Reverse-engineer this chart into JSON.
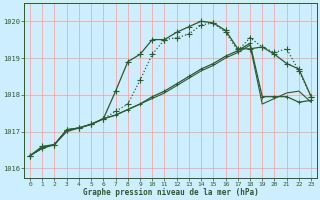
{
  "title": "Graphe pression niveau de la mer (hPa)",
  "background_color": "#cceeff",
  "grid_color": "#ff9999",
  "dark_green": "#2d5a2d",
  "xlim": [
    -0.5,
    23.5
  ],
  "ylim": [
    1015.75,
    1020.5
  ],
  "yticks": [
    1016,
    1017,
    1018,
    1019,
    1020
  ],
  "xticks": [
    0,
    1,
    2,
    3,
    4,
    5,
    6,
    7,
    8,
    9,
    10,
    11,
    12,
    13,
    14,
    15,
    16,
    17,
    18,
    19,
    20,
    21,
    22,
    23
  ],
  "line1_y": [
    1016.35,
    1016.55,
    1016.65,
    1017.05,
    1017.1,
    1017.2,
    1017.35,
    1017.45,
    1017.6,
    1017.75,
    1017.95,
    1018.1,
    1018.3,
    1018.5,
    1018.7,
    1018.85,
    1019.05,
    1019.2,
    1019.4,
    1017.95,
    1017.95,
    1017.95,
    1017.8,
    1017.85
  ],
  "line2_y": [
    1016.35,
    1016.55,
    1016.65,
    1017.05,
    1017.1,
    1017.2,
    1017.35,
    1017.55,
    1017.75,
    1018.4,
    1019.1,
    1019.5,
    1019.55,
    1019.65,
    1019.9,
    1019.95,
    1019.7,
    1019.2,
    1019.55,
    1019.3,
    1019.15,
    1019.25,
    1018.65,
    1017.95
  ],
  "line3_y": [
    1016.35,
    1016.6,
    1016.65,
    1017.05,
    1017.1,
    1017.2,
    1017.35,
    1018.1,
    1018.9,
    1019.1,
    1019.5,
    1019.5,
    1019.7,
    1019.85,
    1020.0,
    1019.95,
    1019.75,
    1019.25,
    1019.25,
    1019.3,
    1019.1,
    1018.85,
    1018.7,
    1017.95
  ],
  "line4_y": [
    1016.35,
    1016.55,
    1016.65,
    1017.0,
    1017.1,
    1017.2,
    1017.35,
    1017.45,
    1017.6,
    1017.75,
    1017.9,
    1018.05,
    1018.25,
    1018.45,
    1018.65,
    1018.8,
    1019.0,
    1019.15,
    1019.35,
    1017.75,
    1017.9,
    1018.05,
    1018.1,
    1017.8
  ]
}
